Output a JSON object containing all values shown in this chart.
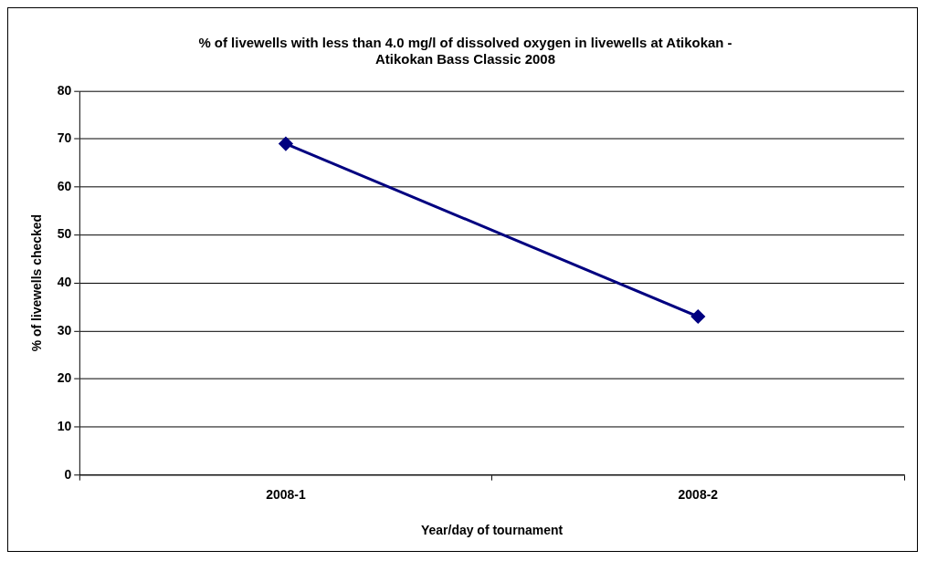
{
  "chart_data": {
    "type": "line",
    "title": "% of livewells with less than 4.0 mg/l of dissolved oxygen in livewells at Atikokan - Atikokan Bass Classic 2008",
    "xlabel": "Year/day of tournament",
    "ylabel": "% of livewells checked",
    "categories": [
      "2008-1",
      "2008-2"
    ],
    "series": [
      {
        "color": "#000080",
        "values": [
          69,
          33
        ]
      }
    ],
    "ylim": [
      0,
      80
    ],
    "yticks": [
      0,
      10,
      20,
      30,
      40,
      50,
      60,
      70,
      80
    ],
    "grid": "y",
    "marker": "diamond",
    "line_style": "solid",
    "legend": false
  }
}
